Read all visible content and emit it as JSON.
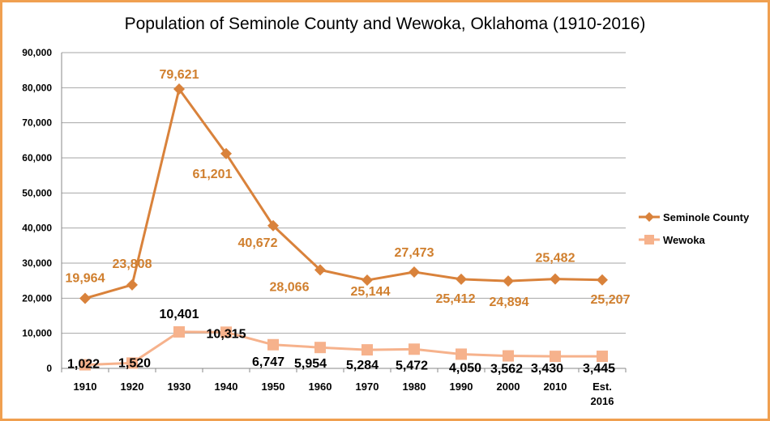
{
  "chart_data": {
    "type": "line",
    "title": "Population of Seminole County and Wewoka, Oklahoma (1910-2016)",
    "xlabel": "",
    "ylabel": "",
    "categories": [
      "1910",
      "1920",
      "1930",
      "1940",
      "1950",
      "1960",
      "1970",
      "1980",
      "1990",
      "2000",
      "2010",
      "Est. 2016"
    ],
    "ylim": [
      0,
      90000
    ],
    "yticks": [
      "0",
      "10,000",
      "20,000",
      "30,000",
      "40,000",
      "50,000",
      "60,000",
      "70,000",
      "80,000",
      "90,000"
    ],
    "grid": true,
    "legend_position": "right",
    "series": [
      {
        "name": "Seminole County",
        "color": "#d9823b",
        "marker": "diamond",
        "values": [
          19964,
          23808,
          79621,
          61201,
          40672,
          28066,
          25144,
          27473,
          25412,
          24894,
          25482,
          25207
        ],
        "labels": [
          "19,964",
          "23,808",
          "79,621",
          "61,201",
          "40,672",
          "28,066",
          "25,144",
          "27,473",
          "25,412",
          "24,894",
          "25,482",
          "25,207"
        ]
      },
      {
        "name": "Wewoka",
        "color": "#f6b28c",
        "marker": "square",
        "values": [
          1022,
          1520,
          10401,
          10315,
          6747,
          5954,
          5284,
          5472,
          4050,
          3562,
          3430,
          3445
        ],
        "labels": [
          "1,022",
          "1,520",
          "10,401",
          "10,315",
          "6,747",
          "5,954",
          "5,284",
          "5,472",
          "4,050",
          "3,562",
          "3,430",
          "3,445"
        ]
      }
    ]
  }
}
